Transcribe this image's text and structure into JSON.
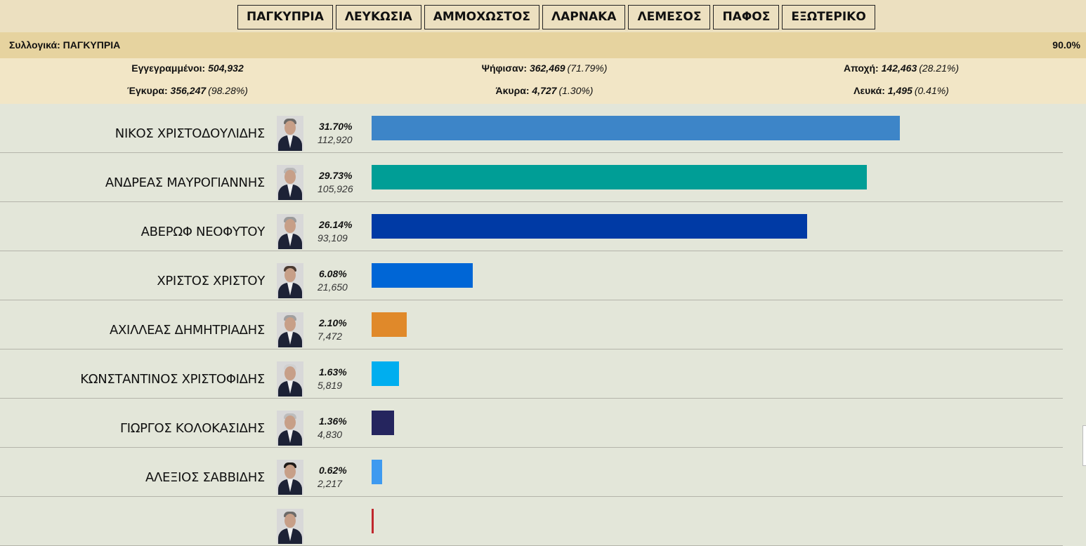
{
  "tabs": [
    "ΠΑΓΚΥΠΡΙΑ",
    "ΛΕΥΚΩΣΙΑ",
    "ΑΜΜΟΧΩΣΤΟΣ",
    "ΛΑΡΝΑΚΑ",
    "ΛΕΜΕΣΟΣ",
    "ΠΑΦΟΣ",
    "ΕΞΩΤΕΡΙΚΟ"
  ],
  "summary": {
    "label": "Συλλογικά: ΠΑΓΚΥΠΡΙΑ",
    "counted_pct": "90.0%"
  },
  "stats": {
    "registered": {
      "label": "Εγγεγραμμένοι:",
      "value": "504,932",
      "pct": ""
    },
    "voted": {
      "label": "Ψήφισαν:",
      "value": "362,469",
      "pct": "(71.79%)"
    },
    "abstention": {
      "label": "Αποχή:",
      "value": "142,463",
      "pct": "(28.21%)"
    },
    "valid": {
      "label": "Έγκυρα:",
      "value": "356,247",
      "pct": "(98.28%)"
    },
    "invalid": {
      "label": "Άκυρα:",
      "value": "4,727",
      "pct": "(1.30%)"
    },
    "blank": {
      "label": "Λευκά:",
      "value": "1,495",
      "pct": "(0.41%)"
    }
  },
  "candidates": [
    {
      "name": "ΝΙΚΟΣ ΧΡΙΣΤΟΔΟΥΛΙΔΗΣ",
      "pct": "31.70%",
      "votes": "112,920",
      "share": 31.7,
      "color": "#3d85c8"
    },
    {
      "name": "ΑΝΔΡΕΑΣ ΜΑΥΡΟΓΙΑΝΝΗΣ",
      "pct": "29.73%",
      "votes": "105,926",
      "share": 29.73,
      "color": "#009e96"
    },
    {
      "name": "ΑΒΕΡΩΦ ΝΕΟΦΥΤΟΥ",
      "pct": "26.14%",
      "votes": "93,109",
      "share": 26.14,
      "color": "#003aa5"
    },
    {
      "name": "ΧΡΙΣΤΟΣ ΧΡΙΣΤΟΥ",
      "pct": "6.08%",
      "votes": "21,650",
      "share": 6.08,
      "color": "#0066d6"
    },
    {
      "name": "ΑΧΙΛΛΕΑΣ ΔΗΜΗΤΡΙΑΔΗΣ",
      "pct": "2.10%",
      "votes": "7,472",
      "share": 2.1,
      "color": "#e0892a"
    },
    {
      "name": "ΚΩΝΣΤΑΝΤΙΝΟΣ ΧΡΙΣΤΟΦΙΔΗΣ",
      "pct": "1.63%",
      "votes": "5,819",
      "share": 1.63,
      "color": "#00aeef"
    },
    {
      "name": "ΓΙΩΡΓΟΣ ΚΟΛΟΚΑΣΙΔΗΣ",
      "pct": "1.36%",
      "votes": "4,830",
      "share": 1.36,
      "color": "#25255e"
    },
    {
      "name": "ΑΛΕΞΙΟΣ ΣΑΒΒΙΔΗΣ",
      "pct": "0.62%",
      "votes": "2,217",
      "share": 0.62,
      "color": "#3e9af0"
    },
    {
      "name": "",
      "pct": "",
      "votes": "",
      "share": 0.12,
      "color": "#c0272d"
    }
  ]
}
